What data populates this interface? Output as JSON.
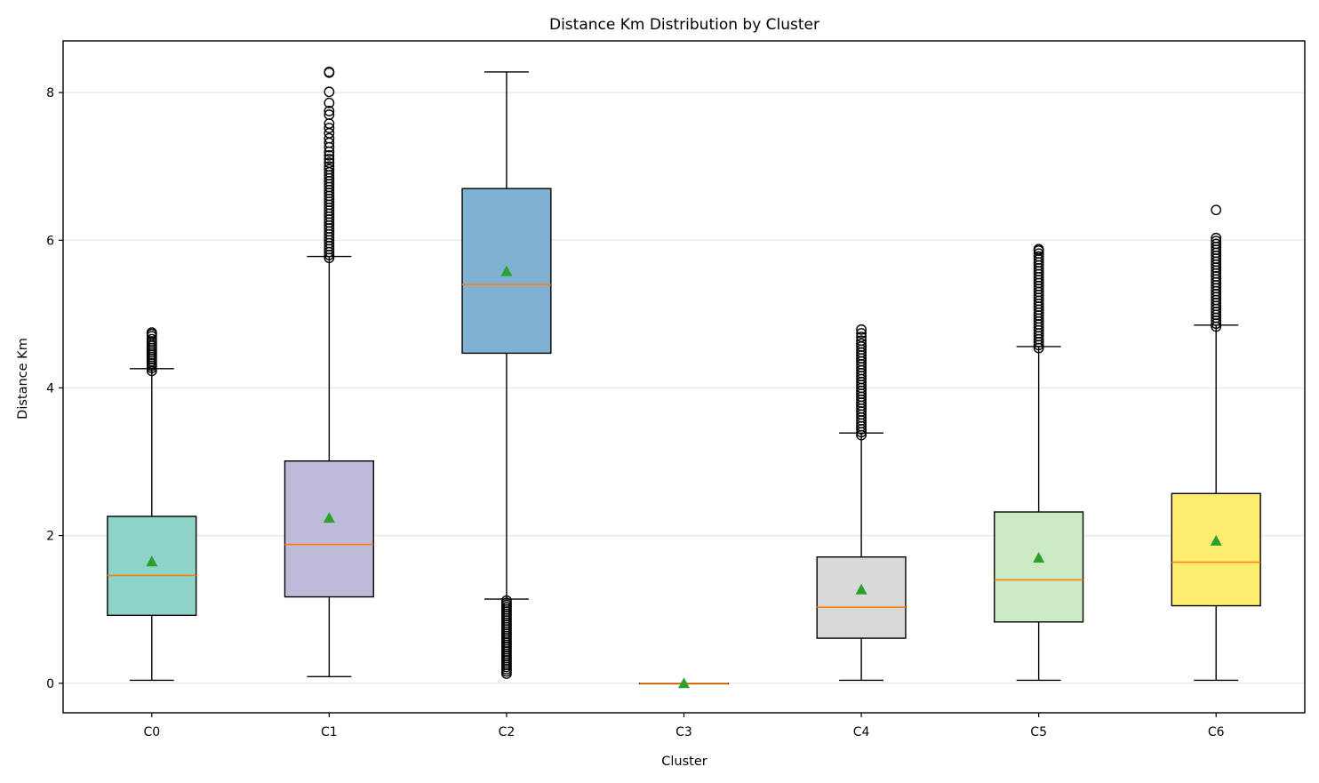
{
  "chart_data": {
    "type": "box",
    "title": "Distance Km Distribution by Cluster",
    "xlabel": "Cluster",
    "ylabel": "Distance Km",
    "ylim": [
      -0.4,
      8.7
    ],
    "yticks": [
      0,
      2,
      4,
      6,
      8
    ],
    "grid": "y",
    "categories": [
      "C0",
      "C1",
      "C2",
      "C3",
      "C4",
      "C5",
      "C6"
    ],
    "boxes": [
      {
        "name": "C0",
        "color": "#8dd3c7",
        "q1": 0.92,
        "median": 1.46,
        "q3": 2.26,
        "mean": 1.65,
        "whisker_low": 0.04,
        "whisker_high": 4.26,
        "outliers": [
          4.23,
          4.27,
          4.3,
          4.33,
          4.36,
          4.39,
          4.42,
          4.45,
          4.48,
          4.51,
          4.54,
          4.57,
          4.6,
          4.63,
          4.66,
          4.7,
          4.73,
          4.75
        ]
      },
      {
        "name": "C1",
        "color": "#bebada",
        "q1": 1.17,
        "median": 1.88,
        "q3": 3.01,
        "mean": 2.24,
        "whisker_low": 0.09,
        "whisker_high": 5.78,
        "outliers": [
          5.76,
          5.8,
          5.84,
          5.88,
          5.92,
          5.96,
          6.0,
          6.04,
          6.08,
          6.12,
          6.16,
          6.2,
          6.24,
          6.28,
          6.32,
          6.36,
          6.4,
          6.44,
          6.48,
          6.52,
          6.56,
          6.6,
          6.64,
          6.68,
          6.72,
          6.76,
          6.8,
          6.84,
          6.88,
          6.92,
          6.96,
          7.0,
          7.05,
          7.1,
          7.15,
          7.2,
          7.26,
          7.32,
          7.38,
          7.45,
          7.52,
          7.58,
          7.7,
          7.75,
          7.86,
          8.01,
          8.27,
          8.28
        ]
      },
      {
        "name": "C2",
        "color": "#80b1d3",
        "q1": 4.47,
        "median": 5.4,
        "q3": 6.7,
        "mean": 5.58,
        "whisker_low": 1.14,
        "whisker_high": 8.28,
        "outliers": [
          0.13,
          0.16,
          0.19,
          0.22,
          0.25,
          0.28,
          0.31,
          0.34,
          0.37,
          0.4,
          0.43,
          0.46,
          0.49,
          0.52,
          0.55,
          0.58,
          0.61,
          0.64,
          0.67,
          0.7,
          0.73,
          0.76,
          0.79,
          0.82,
          0.85,
          0.88,
          0.91,
          0.94,
          0.97,
          1.0,
          1.03,
          1.06,
          1.09,
          1.12
        ]
      },
      {
        "name": "C3",
        "color": "#fb8072",
        "q1": 0.0,
        "median": 0.0,
        "q3": 0.0,
        "mean": 0.0,
        "whisker_low": 0.0,
        "whisker_high": 0.0,
        "outliers": []
      },
      {
        "name": "C4",
        "color": "#d9d9d9",
        "q1": 0.61,
        "median": 1.03,
        "q3": 1.71,
        "mean": 1.27,
        "whisker_low": 0.04,
        "whisker_high": 3.39,
        "outliers": [
          3.36,
          3.4,
          3.44,
          3.48,
          3.52,
          3.56,
          3.6,
          3.64,
          3.68,
          3.72,
          3.76,
          3.8,
          3.84,
          3.88,
          3.92,
          3.96,
          4.0,
          4.04,
          4.08,
          4.12,
          4.16,
          4.2,
          4.24,
          4.28,
          4.32,
          4.36,
          4.4,
          4.44,
          4.48,
          4.52,
          4.56,
          4.6,
          4.64,
          4.69,
          4.74,
          4.79
        ]
      },
      {
        "name": "C5",
        "color": "#ccebc5",
        "q1": 0.83,
        "median": 1.4,
        "q3": 2.32,
        "mean": 1.7,
        "whisker_low": 0.04,
        "whisker_high": 4.56,
        "outliers": [
          4.54,
          4.58,
          4.62,
          4.66,
          4.7,
          4.74,
          4.78,
          4.82,
          4.86,
          4.9,
          4.94,
          4.98,
          5.02,
          5.06,
          5.1,
          5.14,
          5.18,
          5.22,
          5.26,
          5.3,
          5.34,
          5.38,
          5.42,
          5.46,
          5.5,
          5.54,
          5.58,
          5.62,
          5.66,
          5.7,
          5.74,
          5.78,
          5.82,
          5.86,
          5.88
        ]
      },
      {
        "name": "C6",
        "color": "#ffed6f",
        "q1": 1.05,
        "median": 1.64,
        "q3": 2.57,
        "mean": 1.93,
        "whisker_low": 0.04,
        "whisker_high": 4.85,
        "outliers": [
          4.83,
          4.87,
          4.91,
          4.95,
          4.99,
          5.03,
          5.07,
          5.11,
          5.15,
          5.19,
          5.23,
          5.27,
          5.31,
          5.35,
          5.39,
          5.43,
          5.47,
          5.51,
          5.55,
          5.59,
          5.63,
          5.67,
          5.71,
          5.75,
          5.79,
          5.83,
          5.87,
          5.91,
          5.95,
          5.99,
          6.03,
          6.41
        ]
      }
    ],
    "median_color": "#ff7f0e",
    "mean_marker_color": "#2ca02c"
  }
}
